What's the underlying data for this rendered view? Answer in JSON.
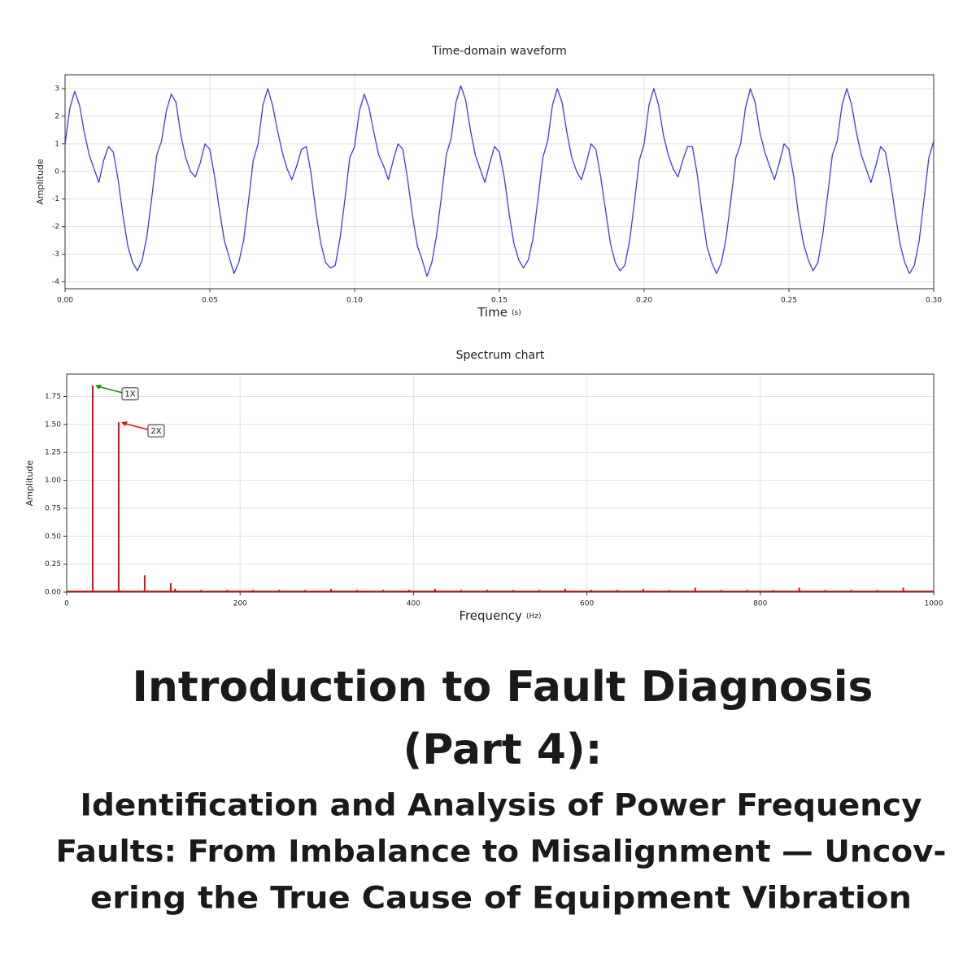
{
  "chart_data": [
    {
      "type": "line",
      "title": "Time-domain waveform",
      "xlabel": "Time",
      "xunit": "(s)",
      "ylabel": "Amplitude",
      "xlim": [
        0,
        0.3
      ],
      "ylim": [
        -4.25,
        3.5
      ],
      "grid": true,
      "xticks": [
        {
          "value": 0,
          "label": "0.00"
        },
        {
          "value": 0.05,
          "label": "0.05"
        },
        {
          "value": 0.1,
          "label": "0.10"
        },
        {
          "value": 0.15,
          "label": "0.15"
        },
        {
          "value": 0.2,
          "label": "0.20"
        },
        {
          "value": 0.25,
          "label": "0.25"
        },
        {
          "value": 0.3,
          "label": "0.30"
        }
      ],
      "yticks": [
        -4,
        -3,
        -2,
        -1,
        0,
        1,
        2,
        3
      ],
      "x": [
        0,
        0.00167,
        0.00333,
        0.005,
        0.00667,
        0.00833,
        0.01,
        0.01167,
        0.01333,
        0.015,
        0.01667,
        0.01833,
        0.02,
        0.02167,
        0.02333,
        0.025,
        0.02667,
        0.02833,
        0.03,
        0.03167,
        0.03333,
        0.035,
        0.03667,
        0.03833,
        0.04,
        0.04167,
        0.04333,
        0.045,
        0.04667,
        0.04833,
        0.05,
        0.05167,
        0.05333,
        0.055,
        0.05667,
        0.05833,
        0.06,
        0.06167,
        0.06333,
        0.065,
        0.06667,
        0.06833,
        0.07,
        0.07167,
        0.07333,
        0.075,
        0.07667,
        0.07833,
        0.08,
        0.08167,
        0.08333,
        0.085,
        0.08667,
        0.08833,
        0.09,
        0.09167,
        0.09333,
        0.095,
        0.09667,
        0.09833,
        0.1,
        0.10167,
        0.10333,
        0.105,
        0.10667,
        0.10833,
        0.11,
        0.11167,
        0.11333,
        0.115,
        0.11667,
        0.11833,
        0.12,
        0.12167,
        0.12333,
        0.125,
        0.12667,
        0.12833,
        0.13,
        0.13167,
        0.13333,
        0.135,
        0.13667,
        0.13833,
        0.14,
        0.14167,
        0.14333,
        0.145,
        0.14667,
        0.14833,
        0.15,
        0.15167,
        0.15333,
        0.155,
        0.15667,
        0.15833,
        0.16,
        0.16167,
        0.16333,
        0.165,
        0.16667,
        0.16833,
        0.17,
        0.17167,
        0.17333,
        0.175,
        0.17667,
        0.17833,
        0.18,
        0.18167,
        0.18333,
        0.185,
        0.18667,
        0.18833,
        0.19,
        0.19167,
        0.19333,
        0.195,
        0.19667,
        0.19833,
        0.2,
        0.20167,
        0.20333,
        0.205,
        0.20667,
        0.20833,
        0.21,
        0.21167,
        0.21333,
        0.215,
        0.21667,
        0.21833,
        0.22,
        0.22167,
        0.22333,
        0.225,
        0.22667,
        0.22833,
        0.23,
        0.23167,
        0.23333,
        0.235,
        0.23667,
        0.23833,
        0.24,
        0.24167,
        0.24333,
        0.245,
        0.24667,
        0.24833,
        0.25,
        0.25167,
        0.25333,
        0.255,
        0.25667,
        0.25833,
        0.26,
        0.26167,
        0.26333,
        0.265,
        0.26667,
        0.26833,
        0.27,
        0.27167,
        0.27333,
        0.275,
        0.27667,
        0.27833,
        0.28,
        0.28167,
        0.28333,
        0.285,
        0.28667,
        0.28833,
        0.29,
        0.29167,
        0.29333,
        0.295,
        0.29667,
        0.29833,
        0.3
      ],
      "series": [
        {
          "color": "#3a3af2",
          "values": [
            1.0,
            2.3,
            2.9,
            2.4,
            1.4,
            0.6,
            0.1,
            -0.4,
            0.4,
            0.9,
            0.7,
            -0.3,
            -1.6,
            -2.7,
            -3.3,
            -3.6,
            -3.2,
            -2.3,
            -0.9,
            0.6,
            1.1,
            2.2,
            2.8,
            2.5,
            1.3,
            0.5,
            0.0,
            -0.2,
            0.3,
            1.0,
            0.8,
            -0.2,
            -1.4,
            -2.5,
            -3.1,
            -3.7,
            -3.3,
            -2.5,
            -1.1,
            0.4,
            1.0,
            2.4,
            3.0,
            2.4,
            1.5,
            0.7,
            0.1,
            -0.3,
            0.2,
            0.8,
            0.9,
            -0.1,
            -1.5,
            -2.6,
            -3.3,
            -3.5,
            -3.4,
            -2.4,
            -1.0,
            0.5,
            0.9,
            2.2,
            2.8,
            2.3,
            1.4,
            0.6,
            0.2,
            -0.3,
            0.4,
            1.0,
            0.8,
            -0.3,
            -1.6,
            -2.7,
            -3.2,
            -3.8,
            -3.3,
            -2.3,
            -0.9,
            0.6,
            1.2,
            2.5,
            3.1,
            2.6,
            1.5,
            0.6,
            0.1,
            -0.4,
            0.3,
            0.9,
            0.7,
            -0.2,
            -1.5,
            -2.6,
            -3.2,
            -3.5,
            -3.2,
            -2.4,
            -1.0,
            0.5,
            1.1,
            2.4,
            3.0,
            2.5,
            1.4,
            0.5,
            0.0,
            -0.3,
            0.3,
            1.0,
            0.8,
            -0.2,
            -1.4,
            -2.6,
            -3.3,
            -3.6,
            -3.4,
            -2.5,
            -1.1,
            0.4,
            1.0,
            2.4,
            3.0,
            2.4,
            1.3,
            0.6,
            0.1,
            -0.2,
            0.4,
            0.9,
            0.9,
            -0.1,
            -1.5,
            -2.7,
            -3.3,
            -3.7,
            -3.3,
            -2.4,
            -1.0,
            0.5,
            1.0,
            2.3,
            3.0,
            2.5,
            1.4,
            0.7,
            0.2,
            -0.3,
            0.3,
            1.0,
            0.8,
            -0.2,
            -1.6,
            -2.6,
            -3.2,
            -3.6,
            -3.3,
            -2.3,
            -0.9,
            0.6,
            1.1,
            2.4,
            3.0,
            2.4,
            1.4,
            0.6,
            0.1,
            -0.4,
            0.2,
            0.9,
            0.7,
            -0.3,
            -1.5,
            -2.6,
            -3.3,
            -3.7,
            -3.4,
            -2.5,
            -1.0,
            0.5,
            1.1
          ]
        }
      ]
    },
    {
      "type": "stem",
      "title": "Spectrum chart",
      "xlabel": "Frequency",
      "xunit": "(Hz)",
      "ylabel": "Amplitude",
      "xlim": [
        0,
        1000
      ],
      "ylim": [
        0,
        1.95
      ],
      "grid": true,
      "xticks": [
        0,
        200,
        400,
        600,
        800,
        1000
      ],
      "yticks": [
        {
          "value": 0,
          "label": "0.00"
        },
        {
          "value": 0.25,
          "label": "0.25"
        },
        {
          "value": 0.5,
          "label": "0.50"
        },
        {
          "value": 0.75,
          "label": "0.75"
        },
        {
          "value": 1,
          "label": "1.00"
        },
        {
          "value": 1.25,
          "label": "1.25"
        },
        {
          "value": 1.5,
          "label": "1.50"
        },
        {
          "value": 1.75,
          "label": "1.75"
        }
      ],
      "x": [
        30,
        60,
        90,
        120,
        125,
        155,
        185,
        215,
        245,
        275,
        305,
        335,
        365,
        395,
        425,
        455,
        485,
        515,
        545,
        575,
        605,
        635,
        665,
        695,
        725,
        755,
        785,
        815,
        845,
        875,
        905,
        935,
        965
      ],
      "series": [
        {
          "color": "#e01010",
          "values": [
            1.85,
            1.52,
            0.15,
            0.08,
            0.03,
            0.02,
            0.02,
            0.02,
            0.02,
            0.02,
            0.03,
            0.02,
            0.02,
            0.02,
            0.03,
            0.02,
            0.02,
            0.02,
            0.02,
            0.03,
            0.02,
            0.02,
            0.03,
            0.02,
            0.04,
            0.02,
            0.02,
            0.02,
            0.04,
            0.02,
            0.02,
            0.02,
            0.04
          ]
        }
      ],
      "annotations": [
        {
          "text": "1X",
          "color": "#1a8a1a"
        },
        {
          "text": "2X",
          "color": "#e01010"
        }
      ]
    }
  ],
  "heading": {
    "title_lines": [
      "Introduction to Fault Diagnosis",
      "(Part 4):"
    ],
    "subtitle_lines": [
      "Identification and Analysis of Power Frequency",
      "Faults: From Imbalance to Misalignment — Uncov-",
      "ering the True Cause of Equipment Vibration"
    ]
  }
}
